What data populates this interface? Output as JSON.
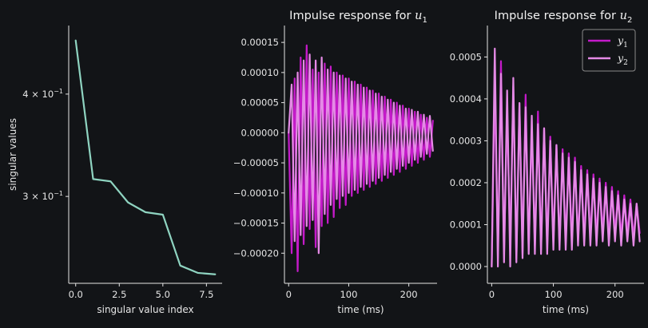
{
  "figure": {
    "background": "#121417",
    "text_color": "#e6e6e6"
  },
  "chart_data": [
    {
      "type": "line",
      "xlabel": "singular value index",
      "ylabel": "singular values",
      "yscale": "log",
      "xlim": [
        -0.4,
        8.4
      ],
      "ylim": [
        0.235,
        0.485
      ],
      "xticks": [
        0,
        2.5,
        5,
        7.5
      ],
      "xtick_labels": [
        "0.0",
        "2.5",
        "5.0",
        "7.5"
      ],
      "yticks": [
        0.3,
        0.4
      ],
      "ytick_labels": [
        "3 × 10",
        "4 × 10"
      ],
      "ytick_exponent": "−1",
      "series": [
        {
          "color": "#8fd4c1",
          "x": [
            0,
            1,
            2,
            3,
            4,
            5,
            6,
            7,
            8
          ],
          "y": [
            0.465,
            0.315,
            0.313,
            0.295,
            0.287,
            0.285,
            0.247,
            0.242,
            0.241
          ]
        }
      ],
      "grid": false
    },
    {
      "type": "line",
      "title_text": "Impulse response for ",
      "title_math_base": "u",
      "title_math_sub": "1",
      "xlabel": "time (ms)",
      "xlim": [
        -7,
        247
      ],
      "ylim": [
        -0.00025,
        0.000178
      ],
      "xticks": [
        0,
        100,
        200
      ],
      "xtick_labels": [
        "0",
        "100",
        "200"
      ],
      "yticks": [
        0.00015,
        0.0001,
        5e-05,
        0,
        -5e-05,
        -0.0001,
        -0.00015,
        -0.0002
      ],
      "ytick_labels": [
        "0.00015",
        "0.00010",
        "0.00005",
        "0.00000",
        "−0.00005",
        "−0.00010",
        "−0.00015",
        "−0.00020"
      ],
      "series_style": "damped oscillation, dt = 5 ms",
      "series": [
        {
          "color": "#c41ac9",
          "x": [
            0,
            5,
            10,
            15,
            20,
            25,
            30,
            35,
            40,
            45,
            50,
            55,
            60,
            65,
            70,
            75,
            80,
            85,
            90,
            95,
            100,
            105,
            110,
            115,
            120,
            125,
            130,
            135,
            140,
            145,
            150,
            155,
            160,
            165,
            170,
            175,
            180,
            185,
            190,
            195,
            200,
            205,
            210,
            215,
            220,
            225,
            230,
            235,
            240
          ],
          "y": [
            0.0,
            -0.0002,
            9e-05,
            -0.00023,
            0.000125,
            -0.000185,
            0.000145,
            -0.00016,
            0.000105,
            -0.00019,
            0.0001,
            -0.000155,
            0.000115,
            -0.00015,
            0.00011,
            -0.00014,
            0.0001,
            -0.000125,
            9.5e-05,
            -0.00012,
            9e-05,
            -0.000105,
            8.5e-05,
            -0.0001,
            8e-05,
            -9.5e-05,
            7.5e-05,
            -9e-05,
            7e-05,
            -8.5e-05,
            6.5e-05,
            -8e-05,
            6e-05,
            -7.5e-05,
            5.5e-05,
            -7e-05,
            5e-05,
            -6.5e-05,
            4.5e-05,
            -6e-05,
            4e-05,
            -5.5e-05,
            3.5e-05,
            -5e-05,
            3e-05,
            -4.5e-05,
            2.5e-05,
            -4e-05,
            2e-05
          ]
        },
        {
          "color": "#e58ae6",
          "x": [
            0,
            5,
            10,
            15,
            20,
            25,
            30,
            35,
            40,
            45,
            50,
            55,
            60,
            65,
            70,
            75,
            80,
            85,
            90,
            95,
            100,
            105,
            110,
            115,
            120,
            125,
            130,
            135,
            140,
            145,
            150,
            155,
            160,
            165,
            170,
            175,
            180,
            185,
            190,
            195,
            200,
            205,
            210,
            215,
            220,
            225,
            230,
            235,
            240
          ],
          "y": [
            0.0,
            8e-05,
            -0.00018,
            0.0001,
            -0.00017,
            0.00012,
            -0.000155,
            0.00013,
            -0.000145,
            0.00012,
            -0.0002,
            0.000125,
            -0.000135,
            0.000105,
            -0.00012,
            0.0001,
            -0.00011,
            9.5e-05,
            -0.000105,
            9e-05,
            -0.0001,
            8.5e-05,
            -9.5e-05,
            8e-05,
            -9e-05,
            7.5e-05,
            -8.5e-05,
            7e-05,
            -8e-05,
            6.5e-05,
            -7.5e-05,
            6e-05,
            -7e-05,
            5.5e-05,
            -6.5e-05,
            5e-05,
            -6e-05,
            4.5e-05,
            -5.5e-05,
            4e-05,
            -5e-05,
            3.8e-05,
            -4.5e-05,
            3.5e-05,
            -4e-05,
            3e-05,
            -3.5e-05,
            2.8e-05,
            -3e-05
          ]
        }
      ],
      "grid": false
    },
    {
      "type": "line",
      "title_text": "Impulse response for ",
      "title_math_base": "u",
      "title_math_sub": "2",
      "xlabel": "time (ms)",
      "xlim": [
        -7,
        247
      ],
      "ylim": [
        -4e-05,
        0.000575
      ],
      "xticks": [
        0,
        100,
        200
      ],
      "xtick_labels": [
        "0",
        "100",
        "200"
      ],
      "yticks": [
        0.0005,
        0.0004,
        0.0003,
        0.0002,
        0.0001,
        0
      ],
      "ytick_labels": [
        "0.0005",
        "0.0004",
        "0.0003",
        "0.0002",
        "0.0001",
        "0.0000"
      ],
      "legend_position": "top-right",
      "series": [
        {
          "name_base": "y",
          "name_sub": "1",
          "color": "#c41ac9",
          "x": [
            0,
            5,
            10,
            15,
            20,
            25,
            30,
            35,
            40,
            45,
            50,
            55,
            60,
            65,
            70,
            75,
            80,
            85,
            90,
            95,
            100,
            105,
            110,
            115,
            120,
            125,
            130,
            135,
            140,
            145,
            150,
            155,
            160,
            165,
            170,
            175,
            180,
            185,
            190,
            195,
            200,
            205,
            210,
            215,
            220,
            225,
            230,
            235,
            240
          ],
          "y": [
            0.0,
            0.00044,
            2e-05,
            0.00049,
            3e-05,
            0.00037,
            4e-05,
            0.00043,
            2e-05,
            0.00039,
            3e-05,
            0.00041,
            4e-05,
            0.00033,
            5e-05,
            0.00037,
            4e-05,
            0.00033,
            5e-05,
            0.00031,
            6e-05,
            0.00029,
            5e-05,
            0.00028,
            6e-05,
            0.00027,
            6e-05,
            0.00026,
            6e-05,
            0.00024,
            7e-05,
            0.00023,
            7e-05,
            0.00022,
            7e-05,
            0.00021,
            8e-05,
            0.0002,
            7e-05,
            0.00019,
            8e-05,
            0.00018,
            7e-05,
            0.00017,
            8e-05,
            0.00016,
            7e-05,
            0.00015,
            8e-05
          ]
        },
        {
          "name_base": "y",
          "name_sub": "2",
          "color": "#e58ae6",
          "x": [
            0,
            5,
            10,
            15,
            20,
            25,
            30,
            35,
            40,
            45,
            50,
            55,
            60,
            65,
            70,
            75,
            80,
            85,
            90,
            95,
            100,
            105,
            110,
            115,
            120,
            125,
            130,
            135,
            140,
            145,
            150,
            155,
            160,
            165,
            170,
            175,
            180,
            185,
            190,
            195,
            200,
            205,
            210,
            215,
            220,
            225,
            230,
            235,
            240
          ],
          "y": [
            0.0,
            0.00052,
            0.0,
            0.00046,
            1e-05,
            0.00042,
            0.0,
            0.00045,
            1e-05,
            0.00039,
            2e-05,
            0.00038,
            3e-05,
            0.00036,
            3e-05,
            0.00034,
            3e-05,
            0.00033,
            3e-05,
            0.0003,
            4e-05,
            0.00029,
            4e-05,
            0.00027,
            4e-05,
            0.00026,
            4e-05,
            0.00025,
            5e-05,
            0.00023,
            5e-05,
            0.00022,
            5e-05,
            0.00021,
            5e-05,
            0.0002,
            6e-05,
            0.00019,
            5e-05,
            0.00018,
            6e-05,
            0.00017,
            5e-05,
            0.00016,
            6e-05,
            0.00015,
            5e-05,
            0.00015,
            6e-05
          ]
        }
      ],
      "grid": false
    }
  ]
}
